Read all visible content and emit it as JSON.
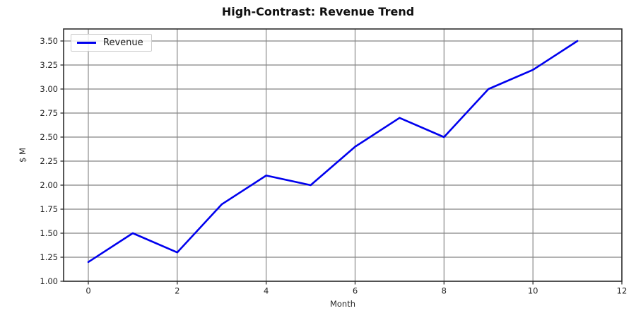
{
  "chart_data": {
    "type": "line",
    "title": "High-Contrast: Revenue Trend",
    "xlabel": "Month",
    "ylabel": "$ M",
    "x": [
      0,
      1,
      2,
      3,
      4,
      5,
      6,
      7,
      8,
      9,
      10,
      11
    ],
    "series": [
      {
        "name": "Revenue",
        "color": "#0000ee",
        "values": [
          1.2,
          1.5,
          1.3,
          1.8,
          2.1,
          2.0,
          2.4,
          2.7,
          2.5,
          3.0,
          3.2,
          3.5
        ]
      }
    ],
    "xlim": [
      -0.556,
      12
    ],
    "ylim": [
      1.0,
      3.625
    ],
    "xticks": [
      0,
      2,
      4,
      6,
      8,
      10,
      12
    ],
    "xtick_labels": [
      "0",
      "2",
      "4",
      "6",
      "8",
      "10",
      "12"
    ],
    "yticks": [
      1.0,
      1.25,
      1.5,
      1.75,
      2.0,
      2.25,
      2.5,
      2.75,
      3.0,
      3.25,
      3.5
    ],
    "ytick_labels": [
      "1.00",
      "1.25",
      "1.50",
      "1.75",
      "2.00",
      "2.25",
      "2.50",
      "2.75",
      "3.00",
      "3.25",
      "3.50"
    ],
    "grid": true,
    "legend_position": "upper left",
    "colors": {
      "line": "#0000ee",
      "grid": "#858585",
      "spine": "#2e2e2e",
      "tick_text": "#262626",
      "title_text": "#0f0f0f",
      "background": "#ffffff"
    }
  }
}
